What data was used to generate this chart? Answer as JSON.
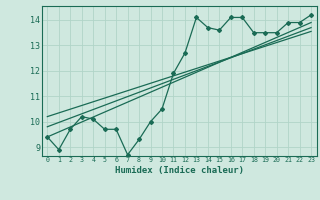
{
  "xlabel": "Humidex (Indice chaleur)",
  "ylabel": "",
  "bg_color": "#cfe8df",
  "grid_color": "#b0d4c8",
  "line_color": "#1a6b55",
  "xlim": [
    -0.5,
    23.5
  ],
  "ylim": [
    8.65,
    14.55
  ],
  "xticks": [
    0,
    1,
    2,
    3,
    4,
    5,
    6,
    7,
    8,
    9,
    10,
    11,
    12,
    13,
    14,
    15,
    16,
    17,
    18,
    19,
    20,
    21,
    22,
    23
  ],
  "yticks": [
    9,
    10,
    11,
    12,
    13,
    14
  ],
  "main_x": [
    0,
    1,
    2,
    3,
    4,
    5,
    6,
    7,
    8,
    9,
    10,
    11,
    12,
    13,
    14,
    15,
    16,
    17,
    18,
    19,
    20,
    21,
    22,
    23
  ],
  "main_y": [
    9.4,
    8.9,
    9.7,
    10.2,
    10.1,
    9.7,
    9.7,
    8.7,
    9.3,
    10.0,
    10.5,
    11.9,
    12.7,
    14.1,
    13.7,
    13.6,
    14.1,
    14.1,
    13.5,
    13.5,
    13.5,
    13.9,
    13.9,
    14.2
  ],
  "line1_x": [
    0,
    23
  ],
  "line1_y": [
    9.4,
    13.9
  ],
  "line2_x": [
    0,
    23
  ],
  "line2_y": [
    10.2,
    13.55
  ],
  "line3_x": [
    0,
    23
  ],
  "line3_y": [
    9.8,
    13.7
  ]
}
